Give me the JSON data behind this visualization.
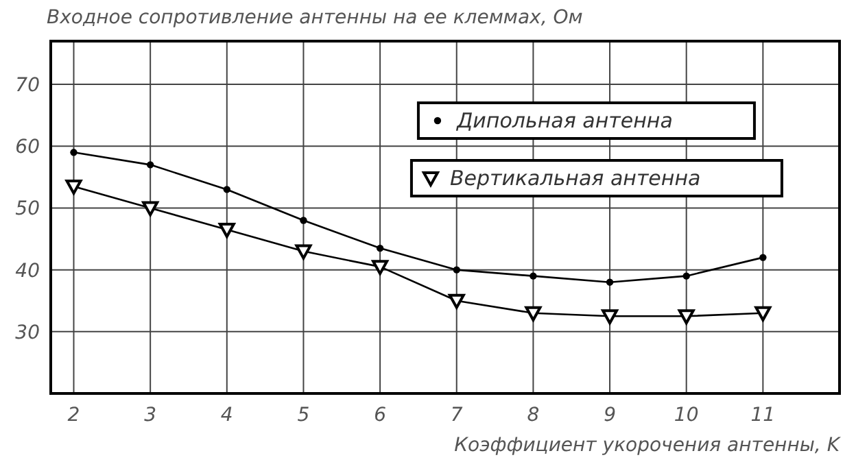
{
  "chart_data": {
    "type": "line",
    "title": "Входное сопротивление антенны на ее клеммах, Ом",
    "xlabel": "Коэффициент укорочения антенны, K",
    "x": [
      2,
      3,
      4,
      5,
      6,
      7,
      8,
      9,
      10,
      11
    ],
    "series": [
      {
        "name": "Дипольная антенна",
        "color": "#000000",
        "marker": "circle",
        "values": [
          59,
          57,
          53,
          48,
          43.5,
          40,
          39,
          38,
          39,
          42
        ]
      },
      {
        "name": "Вертикальная антенна",
        "color": "#000000",
        "marker": "triangle",
        "values": [
          53.5,
          50,
          46.5,
          43,
          40.5,
          35,
          33,
          32.5,
          32.5,
          33
        ]
      }
    ],
    "xlim": [
      1.7,
      12
    ],
    "xticks": [
      2,
      3,
      4,
      5,
      6,
      7,
      8,
      9,
      10,
      11
    ],
    "ylim": [
      20,
      77
    ],
    "yticks": [
      30,
      40,
      50,
      60,
      70
    ],
    "grid": true,
    "legend": "top right",
    "line_style": "solid"
  }
}
